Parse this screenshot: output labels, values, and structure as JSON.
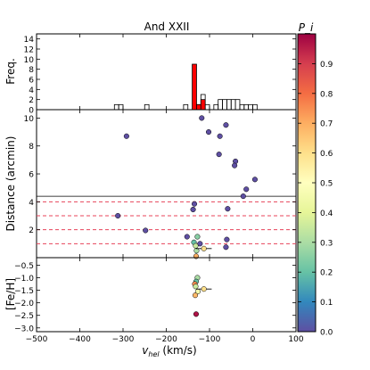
{
  "chart_data": {
    "title": "And XXII",
    "colorbar_label": "P_i",
    "colorbar_ticks": [
      "0.0",
      "0.1",
      "0.2",
      "0.3",
      "0.4",
      "0.5",
      "0.6",
      "0.7",
      "0.8",
      "0.9"
    ],
    "xlabel_main": "v",
    "xlabel_sub": "hel",
    "xlabel_unit": " (km/s)",
    "xlim": [
      -500,
      100
    ],
    "x_ticks": [
      -500,
      -400,
      -300,
      -200,
      -100,
      0,
      100
    ],
    "x_tick_labels": [
      "−500",
      "−400",
      "−300",
      "−200",
      "−100",
      "0",
      "100"
    ],
    "histogram": {
      "type": "bar",
      "ylabel": "Freq.",
      "ylim": [
        0,
        15
      ],
      "y_ticks": [
        0,
        2,
        4,
        6,
        8,
        10,
        12,
        14
      ],
      "y_tick_labels": [
        "0",
        "2",
        "4",
        "6",
        "8",
        "10",
        "12",
        "14"
      ],
      "bin_width": 10,
      "open_bins": [
        {
          "x": -320,
          "count": 1
        },
        {
          "x": -310,
          "count": 1
        },
        {
          "x": -250,
          "count": 1
        },
        {
          "x": -160,
          "count": 1
        },
        {
          "x": -130,
          "count": 1
        },
        {
          "x": -120,
          "count": 3
        },
        {
          "x": -110,
          "count": 1
        },
        {
          "x": -90,
          "count": 1
        },
        {
          "x": -80,
          "count": 2
        },
        {
          "x": -70,
          "count": 2
        },
        {
          "x": -60,
          "count": 2
        },
        {
          "x": -50,
          "count": 2
        },
        {
          "x": -40,
          "count": 2
        },
        {
          "x": -30,
          "count": 1
        },
        {
          "x": -20,
          "count": 1
        },
        {
          "x": -10,
          "count": 1
        },
        {
          "x": 0,
          "count": 1
        }
      ],
      "member_bins": [
        {
          "x": -140,
          "count": 9
        },
        {
          "x": -130,
          "count": 1
        },
        {
          "x": -120,
          "count": 2
        }
      ]
    },
    "distance_panel": {
      "type": "scatter",
      "ylabel": "Distance (arcmin)",
      "ylim": [
        0,
        10.6
      ],
      "y_ticks": [
        2,
        4,
        6,
        8,
        10
      ],
      "y_tick_labels": [
        "2",
        "4",
        "6",
        "8",
        "10"
      ],
      "solid_line": 4.4,
      "dashed_lines": [
        1.0,
        2.0,
        3.0,
        4.0
      ],
      "points": [
        {
          "v": -292,
          "d": 8.7,
          "p": 0.0
        },
        {
          "v": -312,
          "d": 3.0,
          "p": 0.0
        },
        {
          "v": -248,
          "d": 1.95,
          "p": 0.0
        },
        {
          "v": -152,
          "d": 1.5,
          "p": 0.0
        },
        {
          "v": -135,
          "d": 3.85,
          "p": 0.0
        },
        {
          "v": -138,
          "d": 3.45,
          "p": 0.0
        },
        {
          "v": -118,
          "d": 10.0,
          "p": 0.0
        },
        {
          "v": -102,
          "d": 9.0,
          "p": 0.0
        },
        {
          "v": -76,
          "d": 8.7,
          "p": 0.0
        },
        {
          "v": -62,
          "d": 9.5,
          "p": 0.0
        },
        {
          "v": -78,
          "d": 7.4,
          "p": 0.0
        },
        {
          "v": -40,
          "d": 6.9,
          "p": 0.0
        },
        {
          "v": -42,
          "d": 6.6,
          "p": 0.0
        },
        {
          "v": -22,
          "d": 4.4,
          "p": 0.0
        },
        {
          "v": -15,
          "d": 4.9,
          "p": 0.0
        },
        {
          "v": 5,
          "d": 5.6,
          "p": 0.0
        },
        {
          "v": -58,
          "d": 3.5,
          "p": 0.0
        },
        {
          "v": -60,
          "d": 1.3,
          "p": 0.0
        },
        {
          "v": -62,
          "d": 0.75,
          "p": 0.0
        },
        {
          "v": -122,
          "d": 1.0,
          "p": 0.0
        },
        {
          "v": -128,
          "d": 1.5,
          "p": 0.25
        },
        {
          "v": -136,
          "d": 1.1,
          "p": 0.2
        },
        {
          "v": -132,
          "d": 0.85,
          "p": 0.35
        },
        {
          "v": -130,
          "d": 0.5,
          "p": 0.3
        },
        {
          "v": -113,
          "d": 0.65,
          "p": 0.6,
          "err": 18
        },
        {
          "v": -131,
          "d": 0.1,
          "p": 0.7
        }
      ]
    },
    "metallicity_panel": {
      "type": "scatter",
      "ylabel": "[Fe/H]",
      "ylim": [
        -3.15,
        -0.2
      ],
      "y_ticks": [
        -0.5,
        -1.0,
        -1.5,
        -2.0,
        -2.5,
        -3.0
      ],
      "y_tick_labels": [
        "−0.5",
        "−1.0",
        "−1.5",
        "−2.0",
        "−2.5",
        "−3.0"
      ],
      "points": [
        {
          "v": -128,
          "feh": -1.0,
          "p": 0.3
        },
        {
          "v": -131,
          "feh": -1.15,
          "p": 0.2
        },
        {
          "v": -134,
          "feh": -1.25,
          "p": 0.75
        },
        {
          "v": -132,
          "feh": -1.35,
          "p": 0.35
        },
        {
          "v": -127,
          "feh": -1.55,
          "p": 0.45
        },
        {
          "v": -113,
          "feh": -1.45,
          "p": 0.6,
          "err": 18
        },
        {
          "v": -133,
          "feh": -1.7,
          "p": 0.68
        },
        {
          "v": -131,
          "feh": -2.45,
          "p": 0.97
        }
      ]
    }
  }
}
